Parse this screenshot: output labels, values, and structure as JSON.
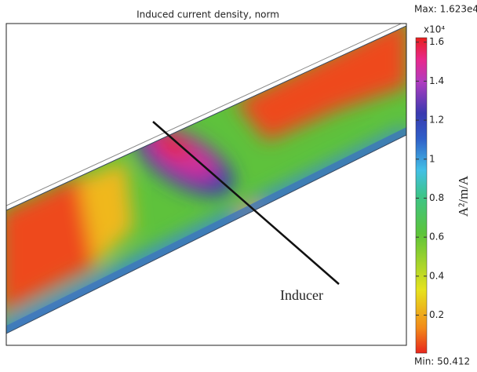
{
  "chart_data": {
    "type": "colorbar",
    "title": "Induced current density, norm",
    "max_label": "Max: 1.623e4",
    "min_label": "Min: 50.412",
    "exponent_label": "x10⁴",
    "unit_label": "A²/m/A",
    "annotation": "Inducer",
    "ylim": [
      0.005,
      1.623
    ],
    "yticks": [
      0.2,
      0.4,
      0.6,
      0.8,
      1,
      1.2,
      1.4,
      1.6
    ]
  }
}
